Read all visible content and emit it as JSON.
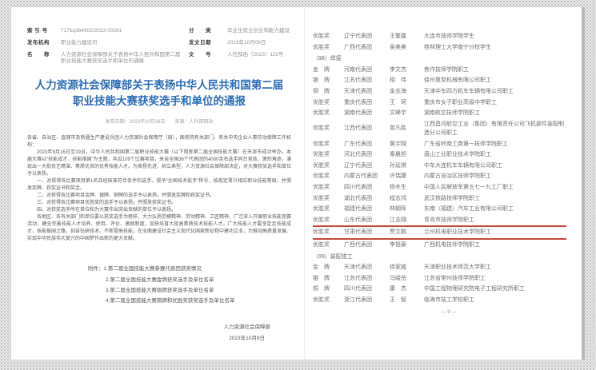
{
  "colors": {
    "accent_blue": "#2b6cb3",
    "highlight_red": "#c5483c"
  },
  "left_page": {
    "info_table": [
      {
        "label": "索 引 号",
        "value": "717bq364902/2023-00291",
        "label2": "分　　类",
        "value2": "毕业生就业创业和能力建设"
      },
      {
        "label": "发布机构",
        "value": "职业能力建设司",
        "label2": "发文日期",
        "value2": "2023年10月08日"
      },
      {
        "label": "名　　称",
        "value": "人力资源社会保障部关于表扬中华人民共和国第二届职业技能大赛获奖选手和单位的通报",
        "label2": "文　　号",
        "value2": "人社部函〔2023〕115号"
      }
    ],
    "title": "人力资源社会保障部关于表扬中华人民共和国第二届职业技能大赛获奖选手和单位的通报",
    "meta": "发布日期：2023年10月26日　　来源：人社部网站",
    "paragraphs": [
      {
        "indent": false,
        "text": "各省、自治区、直辖市及新疆生产建设兵团人力资源社会保障厅（局），国务院有关部门、有关中央企业人事劳动保障工作机构："
      },
      {
        "indent": true,
        "text": "2023年9月16日至19日，中华人民共和国第二届职业技能大赛（以下简称第二届全国技能大赛）在天津市成功举办。本届大赛以“技能成才、技能报国”为主题，共设109个比赛项目，来自全国36个代表团的4000余名选手同台竞技、激烈角逐，涌现出一大批技艺精湛、素质优良的优秀技能人才。为表扬先进、树立典型，人力资源社会保障部决定，对大赛获奖选手和单位予以表扬。"
      },
      {
        "indent": true,
        "text": "一、对获得各比赛项目第1名且经核准符合条件的选手，授予“全国技术能手”称号，按规定晋升相应职业技能等级，并颁发奖牌、获奖证书和奖金。"
      },
      {
        "indent": true,
        "text": "二、对获得各比赛项目金牌、银牌、铜牌的选手予以表扬，并颁发奖牌和获奖证书。"
      },
      {
        "indent": true,
        "text": "三、对获得各比赛项目优胜奖的选手予以表扬，并颁发获奖证书。"
      },
      {
        "indent": true,
        "text": "四、对获奖选手所在单位和为大赛作出突出贡献的单位予以表扬。"
      },
      {
        "indent": true,
        "text": "各地区、各有关部门和单位要以获奖选手为榜样，大力弘扬劳模精神、劳动精神、工匠精神，广泛深入开展职业技能竞赛活动，健全完善技能人才培养、使用、评价、激励制度，加快培育大批高素质技术技能人才。广大技能人才要坚定走技能成才、技能报国之路，刻苦钻研技术、不断提高技能，在全面建设社会主义现代化国家新征程中建功立业，为推动高质量发展、实现中华民族伟大复兴的中国梦作出新的更大贡献。"
      }
    ],
    "attachments": [
      "附件：1.第二届全国技能大赛参赛代表团获奖情况",
      "2.第二届全国技能大赛金牌获奖选手及单位名单",
      "3.第二届全国技能大赛银牌获奖选手及单位名单",
      "4.第二届全国技能大赛铜牌和优胜奖获奖选手及单位名单"
    ],
    "signer": "人力资源社会保障部",
    "sign_date": "2023年10月8日"
  },
  "right_page": {
    "rows": [
      {
        "type": "row",
        "award": "优胜奖",
        "team": "辽宁代表团",
        "name": "王繁露",
        "unit": "大连市技师学院学生"
      },
      {
        "type": "row",
        "award": "优胜奖",
        "team": "广西代表团",
        "name": "吴美美",
        "unit": "桂林理工大学南宁分校学生"
      },
      {
        "type": "section",
        "text": "（98）焊接"
      },
      {
        "type": "row",
        "award": "金　牌",
        "team": "河南代表团",
        "name": "李文杰",
        "unit": "焦作技师学院职工"
      },
      {
        "type": "row",
        "award": "银　牌",
        "team": "江苏代表团",
        "name": "相　伟",
        "unit": "徐州重型机械有限公司职工"
      },
      {
        "type": "row",
        "award": "铜　牌",
        "team": "天津代表团",
        "name": "金志海",
        "unit": "天津中车四方机车车辆有限公司职工"
      },
      {
        "type": "row",
        "award": "优胜奖",
        "team": "重庆代表团",
        "name": "王　珂",
        "unit": "重庆市女子职业高级中学职工"
      },
      {
        "type": "row",
        "award": "优胜奖",
        "team": "湖南代表团",
        "name": "文峰宇",
        "unit": "湖南航空技师学院职工"
      },
      {
        "type": "row",
        "award": "优胜奖",
        "team": "江西代表团",
        "name": "曾凡胜",
        "unit": "江西昌河航空工业（集团）有限责任公司飞机部件装配制造分公司职工"
      },
      {
        "type": "row",
        "award": "优胜奖",
        "team": "广东代表团",
        "name": "黄宇翔",
        "unit": "广东省岭南工商第一技师学院职工"
      },
      {
        "type": "row",
        "award": "优胜奖",
        "team": "河北代表团",
        "name": "秦晨旭",
        "unit": "唐山工业职业技术学院职工"
      },
      {
        "type": "row",
        "award": "优胜奖",
        "team": "辽宁代表团",
        "name": "孙延祺",
        "unit": "中车大连机车车辆有限公司职工"
      },
      {
        "type": "row",
        "award": "优胜奖",
        "team": "内蒙古代表团",
        "name": "许瑞康",
        "unit": "内蒙古自治区技师学院职工"
      },
      {
        "type": "row",
        "award": "优胜奖",
        "team": "四川代表团",
        "name": "杨冬生",
        "unit": "中国人民解放军第五七一九工厂职工"
      },
      {
        "type": "row",
        "award": "优胜奖",
        "team": "湖北代表团",
        "name": "程志鸿",
        "unit": "武汉铁路技师学院职工"
      },
      {
        "type": "row",
        "award": "优胜奖",
        "team": "福建代表团",
        "name": "林朝晖",
        "unit": "东南（福建）汽车工业有限公司职工"
      },
      {
        "type": "row",
        "award": "优胜奖",
        "team": "山东代表团",
        "name": "江志翔",
        "unit": "青岛市技师学院职工"
      },
      {
        "type": "row",
        "award": "优胜奖",
        "team": "甘肃代表团",
        "name": "贾文鹏",
        "unit": "兰州机电职业技术学院职工",
        "highlighted": true
      },
      {
        "type": "row",
        "award": "优胜奖",
        "team": "广西代表团",
        "name": "李祖豪",
        "unit": "广西机电技师学院职工"
      },
      {
        "type": "section",
        "text": "（99）装配钳工"
      },
      {
        "type": "row",
        "award": "金　牌",
        "team": "天津代表团",
        "name": "徐家威",
        "unit": "天津职业技术师范大学职工"
      },
      {
        "type": "row",
        "award": "银　牌",
        "team": "江苏代表团",
        "name": "冯峻岳",
        "unit": "江苏省常州技师学院职工"
      },
      {
        "type": "row",
        "award": "铜　牌",
        "team": "四川代表团",
        "name": "康　杰",
        "unit": "中国工程物理研究院电子工程研究所职工"
      },
      {
        "type": "row",
        "award": "优胜奖",
        "team": "浙江代表团",
        "name": "王　智",
        "unit": "临海市技工学校职工"
      }
    ],
    "page_number": "— 9 —"
  }
}
